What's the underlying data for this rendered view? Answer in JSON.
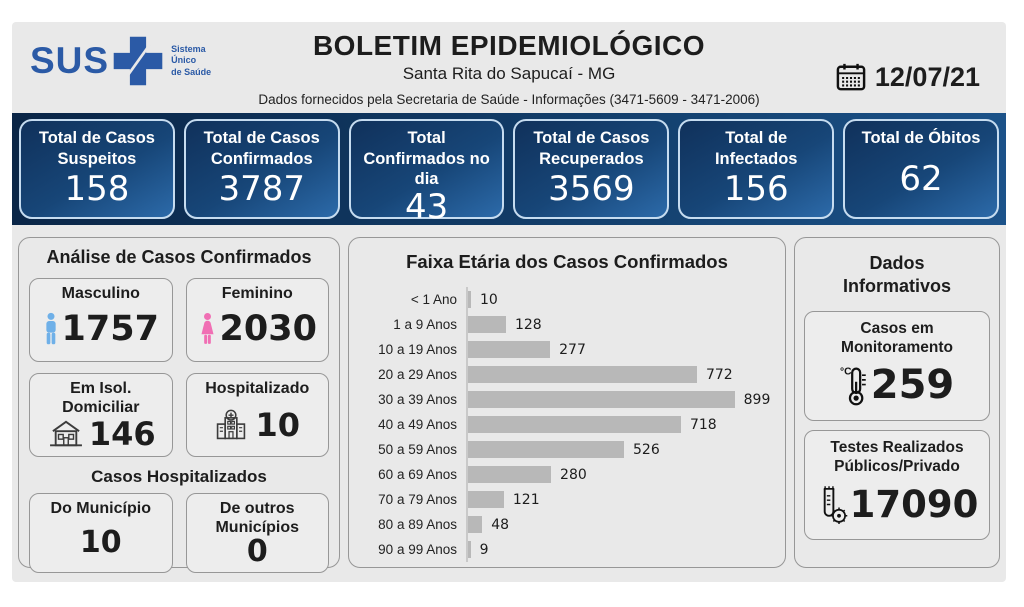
{
  "header": {
    "logo_text": "SUS",
    "logo_caption": "Sistema\nÚnico\nde Saúde",
    "title": "BOLETIM EPIDEMIOLÓGICO",
    "subtitle": "Santa Rita do Sapucaí - MG",
    "info_line": "Dados fornecidos pela Secretaria de Saúde - Informações (3471-5609 - 3471-2006)",
    "date": "12/07/21"
  },
  "summary_cards": [
    {
      "label": "Total de Casos Suspeitos",
      "value": "158"
    },
    {
      "label": "Total de Casos Confirmados",
      "value": "3787"
    },
    {
      "label": "Total Confirmados no dia",
      "value": "43"
    },
    {
      "label": "Total de Casos Recuperados",
      "value": "3569"
    },
    {
      "label": "Total de Infectados",
      "value": "156"
    },
    {
      "label": "Total de Óbitos",
      "value": "62"
    }
  ],
  "analysis": {
    "title": "Análise de Casos Confirmados",
    "cards": [
      {
        "label": "Masculino",
        "value": "1757",
        "icon": "male-icon",
        "icon_color": "#6fb0e8"
      },
      {
        "label": "Feminino",
        "value": "2030",
        "icon": "female-icon",
        "icon_color": "#f06fb4"
      },
      {
        "label": "Em Isol. Domiciliar",
        "value": "146",
        "icon": "house-icon",
        "icon_color": "#3c3c3c"
      },
      {
        "label": "Hospitalizado",
        "value": "10",
        "icon": "hospital-icon",
        "icon_color": "#3c3c3c"
      }
    ],
    "hospitalized_title": "Casos Hospitalizados",
    "hospitalized_cards": [
      {
        "label": "Do Município",
        "value": "10"
      },
      {
        "label": "De outros Municípios",
        "value": "0"
      }
    ]
  },
  "chart_data": {
    "type": "bar",
    "orientation": "horizontal",
    "title": "Faixa Etária dos Casos Confirmados",
    "categories": [
      "< 1 Ano",
      "1 a 9 Anos",
      "10 a 19 Anos",
      "20 a 29 Anos",
      "30 a 39 Anos",
      "40 a 49 Anos",
      "50 a 59 Anos",
      "60 a 69 Anos",
      "70 a 79 Anos",
      "80 a 89 Anos",
      "90 a 99 Anos"
    ],
    "values": [
      10,
      128,
      277,
      772,
      899,
      718,
      526,
      280,
      121,
      48,
      9
    ],
    "xlim": [
      0,
      899
    ],
    "data_labels": true,
    "grid": false,
    "legend": false,
    "bar_color": "#b8b8b8"
  },
  "info_panel": {
    "title": "Dados Informativos",
    "cards": [
      {
        "label": "Casos em Monitoramento",
        "value": "259",
        "icon": "thermometer-icon"
      },
      {
        "label": "Testes Realizados Públicos/Privado",
        "value": "17090",
        "icon": "test-tube-icon"
      }
    ]
  },
  "colors": {
    "brand_blue": "#2b5aa6",
    "strip_navy_dark": "#0a2546",
    "strip_navy_light": "#1c538a",
    "card_border_light_blue": "#c6dcf0",
    "panel_gray": "#e9e9e9",
    "bar_gray": "#b8b8b8",
    "male_blue": "#6fb0e8",
    "female_pink": "#f06fb4"
  }
}
